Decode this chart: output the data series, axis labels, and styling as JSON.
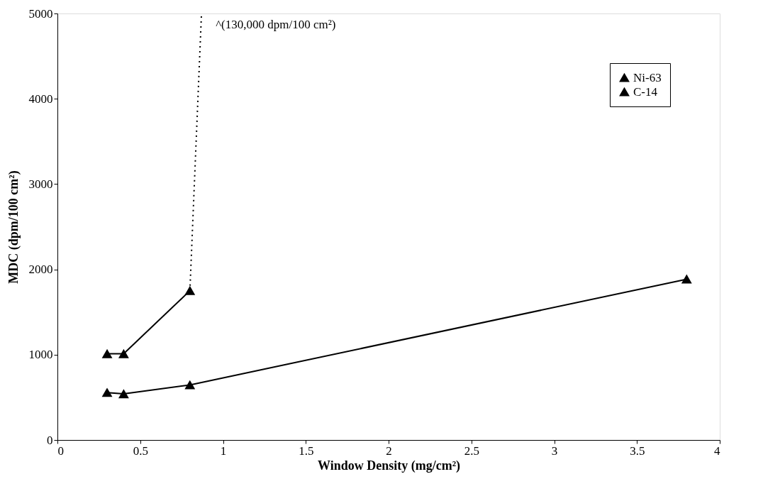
{
  "chart_data": {
    "type": "line",
    "xlabel": "Window Density (mg/cm²)",
    "ylabel": "MDC (dpm/100 cm²)",
    "series": [
      {
        "name": "Ni-63",
        "color": "#000000",
        "marker": "triangle",
        "x": [
          0.3,
          0.4,
          0.8
        ],
        "values": [
          1010,
          1010,
          1750
        ]
      },
      {
        "name": "C-14",
        "color": "#000000",
        "marker": "triangle",
        "x": [
          0.3,
          0.4,
          0.8,
          3.8
        ],
        "values": [
          555,
          540,
          645,
          1885
        ]
      },
      {
        "color": "#000000",
        "marker": "none",
        "line_style": "dotted",
        "x": [
          0.8,
          0.87
        ],
        "values": [
          1750,
          5000
        ]
      }
    ],
    "annotations": [
      {
        "text": "^(130,000 dpm/100 cm²)",
        "x": 0.87,
        "y": 5000
      }
    ],
    "xlim": [
      0,
      4
    ],
    "xticks": [
      0,
      0.5,
      1,
      1.5,
      2,
      2.5,
      3,
      3.5,
      4
    ],
    "ylim": [
      0,
      5000
    ],
    "yticks": [
      0,
      1000,
      2000,
      3000,
      4000,
      5000
    ],
    "grid": false,
    "legend": "top right"
  }
}
